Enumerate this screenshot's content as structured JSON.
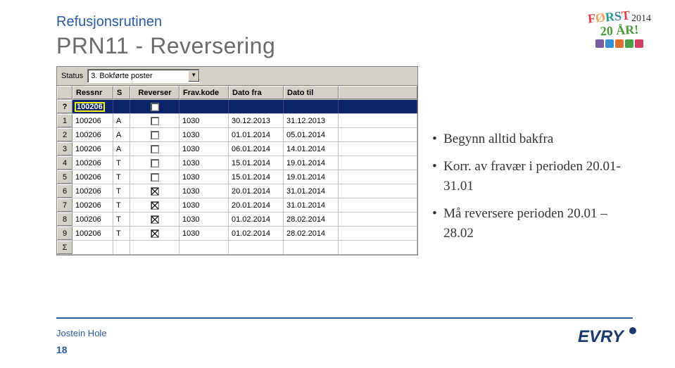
{
  "header": {
    "subtitle": "Refusjonsrutinen",
    "title": "PRN11 - Reversering"
  },
  "logo": {
    "text": "FØRST",
    "year": "2014",
    "anniversary": "20 ÅR!",
    "icon_colors": [
      "#7a5c9e",
      "#3a8fd4",
      "#e07030",
      "#4aa04a",
      "#d04060"
    ]
  },
  "status": {
    "label": "Status",
    "value": "3. Bokførte poster"
  },
  "grid": {
    "columns": [
      "Ressnr",
      "S",
      "Reverser",
      "Frav.kode",
      "Dato fra",
      "Dato til"
    ],
    "selected": {
      "idx": "?",
      "ressnr": "100206"
    },
    "rows": [
      {
        "idx": "1",
        "ressnr": "100206",
        "s": "A",
        "rev": false,
        "frav": "1030",
        "dfra": "30.12.2013",
        "dtil": "31.12.2013"
      },
      {
        "idx": "2",
        "ressnr": "100206",
        "s": "A",
        "rev": false,
        "frav": "1030",
        "dfra": "01.01.2014",
        "dtil": "05.01.2014"
      },
      {
        "idx": "3",
        "ressnr": "100206",
        "s": "A",
        "rev": false,
        "frav": "1030",
        "dfra": "06.01.2014",
        "dtil": "14.01.2014"
      },
      {
        "idx": "4",
        "ressnr": "100206",
        "s": "T",
        "rev": false,
        "frav": "1030",
        "dfra": "15.01.2014",
        "dtil": "19.01.2014"
      },
      {
        "idx": "5",
        "ressnr": "100206",
        "s": "T",
        "rev": false,
        "frav": "1030",
        "dfra": "15.01.2014",
        "dtil": "19.01.2014"
      },
      {
        "idx": "6",
        "ressnr": "100206",
        "s": "T",
        "rev": true,
        "frav": "1030",
        "dfra": "20.01.2014",
        "dtil": "31.01.2014"
      },
      {
        "idx": "7",
        "ressnr": "100206",
        "s": "T",
        "rev": true,
        "frav": "1030",
        "dfra": "20.01.2014",
        "dtil": "31.01.2014"
      },
      {
        "idx": "8",
        "ressnr": "100206",
        "s": "T",
        "rev": true,
        "frav": "1030",
        "dfra": "01.02.2014",
        "dtil": "28.02.2014"
      },
      {
        "idx": "9",
        "ressnr": "100206",
        "s": "T",
        "rev": true,
        "frav": "1030",
        "dfra": "01.02.2014",
        "dtil": "28.02.2014"
      }
    ],
    "sigma": "Σ"
  },
  "bullets": [
    "Begynn alltid bakfra",
    "Korr. av fravær i perioden 20.01-31.01",
    "Må reversere perioden 20.01 – 28.02"
  ],
  "footer": {
    "author": "Jostein Hole",
    "page": "18",
    "brand": "EVRY"
  }
}
